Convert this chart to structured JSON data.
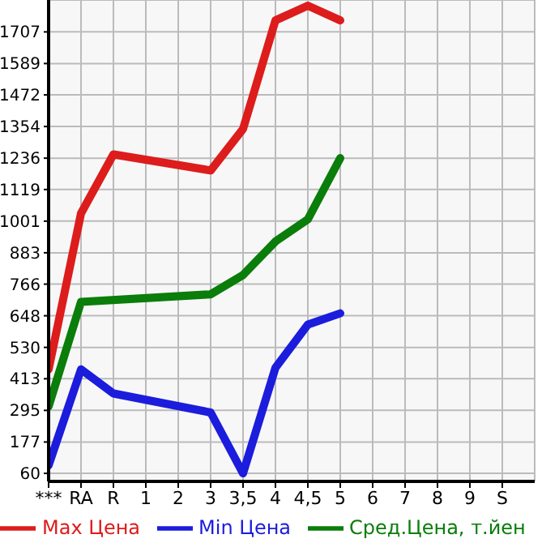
{
  "chart_data": {
    "type": "line",
    "categories": [
      "***",
      "RA",
      "R",
      "1",
      "2",
      "3",
      "3,5",
      "4",
      "4,5",
      "5",
      "6",
      "7",
      "8",
      "9",
      "S"
    ],
    "series": [
      {
        "name": "Max Цена",
        "color": "#dd1c1c",
        "values": [
          448,
          1030,
          1250,
          null,
          null,
          1190,
          1345,
          1750,
          1805,
          1750,
          null,
          null,
          null,
          null,
          null
        ]
      },
      {
        "name": "Min Цена",
        "color": "#1c1cdd",
        "values": [
          90,
          448,
          358,
          null,
          null,
          287,
          60,
          454,
          615,
          657,
          null,
          null,
          null,
          null,
          null
        ]
      },
      {
        "name": "Сред.Цена, т.йен",
        "color": "#0a7d0a",
        "values": [
          310,
          700,
          null,
          null,
          null,
          728,
          800,
          925,
          1008,
          1236,
          null,
          null,
          null,
          null,
          null
        ]
      }
    ],
    "ylim": [
      30,
      1826
    ],
    "yticks": [
      60,
      177,
      295,
      413,
      530,
      648,
      766,
      883,
      1001,
      1119,
      1236,
      1354,
      1472,
      1589,
      1707
    ],
    "grid": true,
    "legend": "bottom",
    "marker": "none",
    "line_style": "solid"
  }
}
